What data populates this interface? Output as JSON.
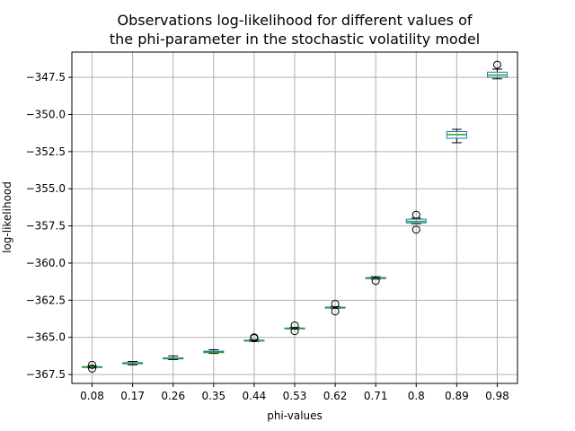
{
  "chart_data": {
    "type": "box",
    "title_lines": [
      "Observations log-likelihood for different values of",
      "the phi-parameter in the stochastic volatility model"
    ],
    "xlabel": "phi-values",
    "ylabel": "log-likelihood",
    "ylim": [
      -368.1,
      -345.8
    ],
    "yticks": [
      -367.5,
      -365.0,
      -362.5,
      -360.0,
      -357.5,
      -355.0,
      -352.5,
      -350.0,
      -347.5
    ],
    "ytick_labels": [
      "−367.5",
      "−365.0",
      "−362.5",
      "−360.0",
      "−357.5",
      "−355.0",
      "−352.5",
      "−350.0",
      "−347.5"
    ],
    "grid": true,
    "colors": {
      "box": "#1f77b4",
      "median": "#2ca02c",
      "whisker": "#000000",
      "flier": "#000000",
      "grid": "#b0b0b0"
    },
    "categories": [
      "0.08",
      "0.17",
      "0.26",
      "0.35",
      "0.44",
      "0.53",
      "0.62",
      "0.71",
      "0.8",
      "0.89",
      "0.98"
    ],
    "boxes": [
      {
        "whisker_low": -367.05,
        "q1": -367.0,
        "median": -367.0,
        "q3": -366.97,
        "whisker_high": -366.93,
        "fliers": [
          -366.85,
          -367.1
        ]
      },
      {
        "whisker_low": -366.85,
        "q1": -366.78,
        "median": -366.75,
        "q3": -366.7,
        "whisker_high": -366.62,
        "fliers": []
      },
      {
        "whisker_low": -366.5,
        "q1": -366.45,
        "median": -366.42,
        "q3": -366.38,
        "whisker_high": -366.25,
        "fliers": []
      },
      {
        "whisker_low": -366.08,
        "q1": -366.03,
        "median": -366.0,
        "q3": -365.93,
        "whisker_high": -365.83,
        "fliers": []
      },
      {
        "whisker_low": -365.28,
        "q1": -365.25,
        "median": -365.22,
        "q3": -365.19,
        "whisker_high": -365.15,
        "fliers": [
          -365.0,
          -365.05
        ]
      },
      {
        "whisker_low": -364.45,
        "q1": -364.43,
        "median": -364.4,
        "q3": -364.37,
        "whisker_high": -364.33,
        "fliers": [
          -364.2,
          -364.58
        ]
      },
      {
        "whisker_low": -363.05,
        "q1": -363.03,
        "median": -363.0,
        "q3": -362.97,
        "whisker_high": -362.93,
        "fliers": [
          -362.75,
          -363.25
        ]
      },
      {
        "whisker_low": -361.08,
        "q1": -361.05,
        "median": -361.0,
        "q3": -360.98,
        "whisker_high": -360.92,
        "fliers": [
          -361.2
        ]
      },
      {
        "whisker_low": -357.35,
        "q1": -357.3,
        "median": -357.2,
        "q3": -357.05,
        "whisker_high": -356.98,
        "fliers": [
          -356.75,
          -357.75
        ]
      },
      {
        "whisker_low": -351.9,
        "q1": -351.6,
        "median": -351.35,
        "q3": -351.15,
        "whisker_high": -351.0,
        "fliers": []
      },
      {
        "whisker_low": -347.6,
        "q1": -347.5,
        "median": -347.35,
        "q3": -347.15,
        "whisker_high": -346.95,
        "fliers": [
          -346.65
        ]
      }
    ]
  }
}
